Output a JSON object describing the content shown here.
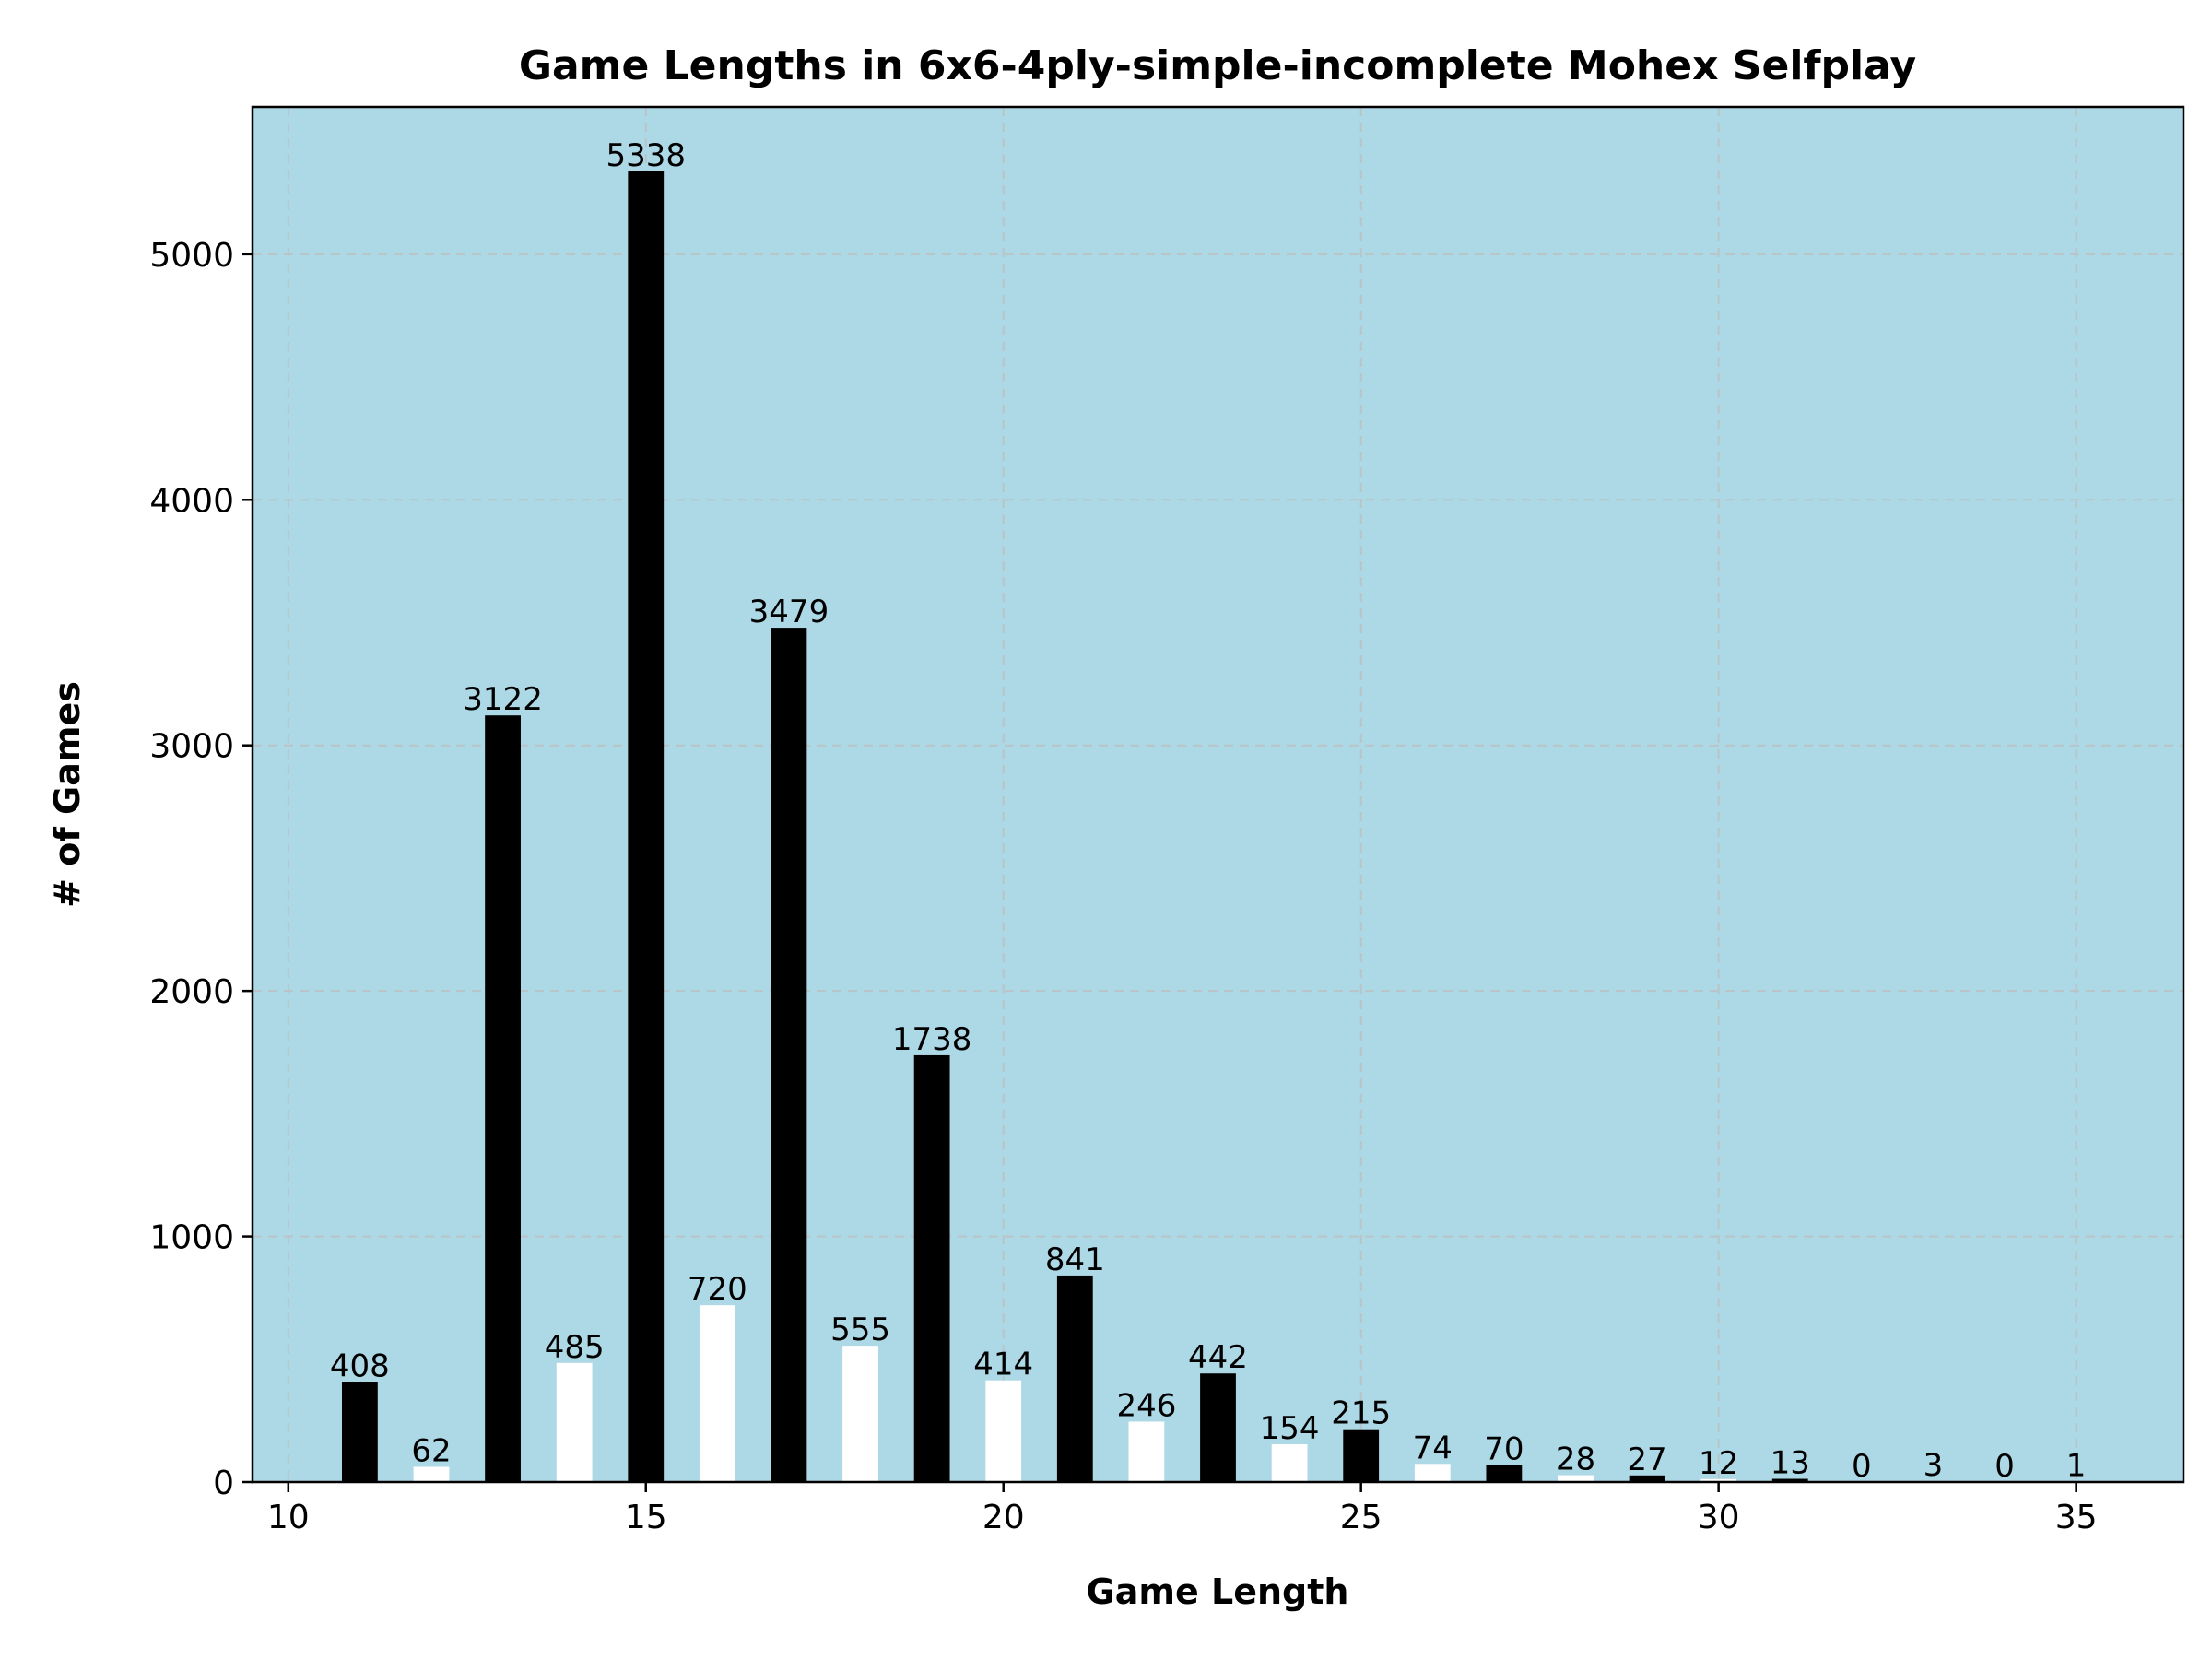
{
  "chart_data": {
    "type": "bar",
    "title": "Game Lengths in 6x6-4ply-simple-incomplete Mohex Selfplay",
    "xlabel": "Game Length",
    "ylabel": "# of Games",
    "x": [
      11,
      12,
      13,
      14,
      15,
      16,
      17,
      18,
      19,
      20,
      21,
      22,
      23,
      24,
      25,
      26,
      27,
      28,
      29,
      30,
      31,
      32,
      33,
      34,
      35
    ],
    "values": [
      408,
      62,
      3122,
      485,
      5338,
      720,
      3479,
      555,
      1738,
      414,
      841,
      246,
      442,
      154,
      215,
      74,
      70,
      28,
      27,
      12,
      13,
      0,
      3,
      0,
      1
    ],
    "labels": [
      "408",
      "62",
      "3122",
      "485",
      "5338",
      "720",
      "3479",
      "555",
      "1738",
      "414",
      "841",
      "246",
      "442",
      "154",
      "215",
      "74",
      "70",
      "28",
      "27",
      "12",
      "13",
      "0",
      "3",
      "0",
      "1"
    ],
    "xlim": [
      9.5,
      36.5
    ],
    "ylim": [
      0,
      5600
    ],
    "xticks": [
      10,
      15,
      20,
      25,
      30,
      35
    ],
    "xtick_labels": [
      "10",
      "15",
      "20",
      "25",
      "30",
      "35"
    ],
    "yticks": [
      0,
      1000,
      2000,
      3000,
      4000,
      5000
    ],
    "ytick_labels": [
      "0",
      "1000",
      "2000",
      "3000",
      "4000",
      "5000"
    ],
    "grid": true,
    "colors": {
      "background": "#add8e6",
      "odd_length_bar": "#000000",
      "even_length_bar": "#ffffff"
    }
  }
}
